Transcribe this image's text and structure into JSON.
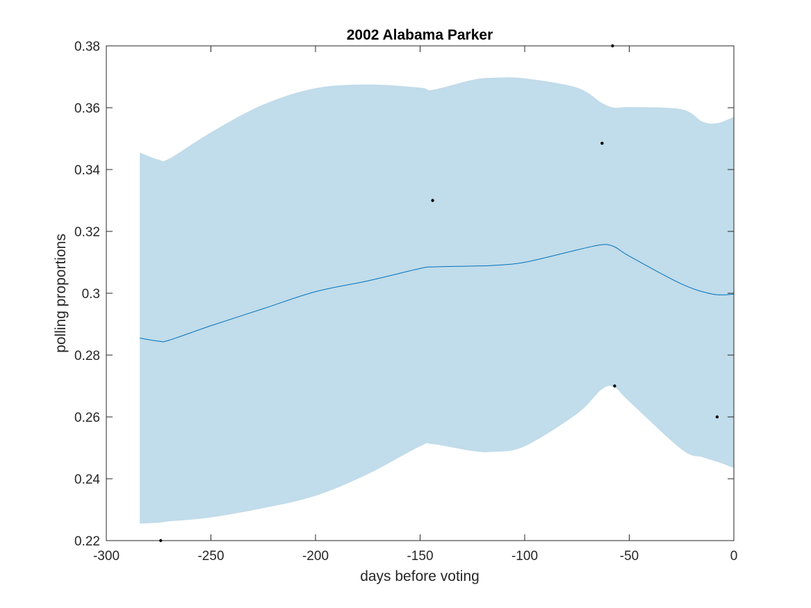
{
  "chart_data": {
    "type": "area",
    "title": "2002 Alabama Parker",
    "xlabel": "days before voting",
    "ylabel": "polling proportions",
    "xlim": [
      -300,
      0
    ],
    "ylim": [
      0.22,
      0.38
    ],
    "xticks": [
      -300,
      -250,
      -200,
      -150,
      -100,
      -50,
      0
    ],
    "xtick_labels": [
      "-300",
      "-250",
      "-200",
      "-150",
      "-100",
      "-50",
      "0"
    ],
    "yticks": [
      0.22,
      0.24,
      0.26,
      0.28,
      0.3,
      0.32,
      0.34,
      0.36,
      0.38
    ],
    "ytick_labels": [
      "0.22",
      "0.24",
      "0.26",
      "0.28",
      "0.3",
      "0.32",
      "0.34",
      "0.36",
      "0.38"
    ],
    "grid": false,
    "band_color": "#c1dcea",
    "line_color": "#0072bd",
    "point_color": "#000000",
    "band": {
      "x": [
        -284,
        -275,
        -270,
        -250,
        -225,
        -200,
        -175,
        -150,
        -144,
        -125,
        -115,
        -100,
        -75,
        -63,
        -57,
        -50,
        -25,
        -15,
        -8,
        0
      ],
      "upper": [
        0.3455,
        0.3432,
        0.3435,
        0.352,
        0.361,
        0.3663,
        0.3675,
        0.3665,
        0.3658,
        0.369,
        0.3697,
        0.3695,
        0.3665,
        0.3615,
        0.36,
        0.3602,
        0.3595,
        0.3555,
        0.355,
        0.357
      ],
      "lower": [
        0.2255,
        0.2258,
        0.2262,
        0.2275,
        0.2305,
        0.2345,
        0.2415,
        0.2505,
        0.2512,
        0.249,
        0.2487,
        0.2505,
        0.261,
        0.269,
        0.2695,
        0.265,
        0.2495,
        0.247,
        0.2455,
        0.2435
      ]
    },
    "series": [
      {
        "x": [
          -284,
          -275,
          -270,
          -250,
          -225,
          -200,
          -175,
          -150,
          -144,
          -125,
          -115,
          -100,
          -75,
          -63,
          -57,
          -50,
          -25,
          -10,
          0
        ],
        "values": [
          0.2855,
          0.2845,
          0.2848,
          0.2895,
          0.295,
          0.3005,
          0.304,
          0.308,
          0.3085,
          0.3088,
          0.309,
          0.31,
          0.314,
          0.3157,
          0.315,
          0.312,
          0.303,
          0.2997,
          0.2997
        ]
      }
    ],
    "points": {
      "x": [
        -274,
        -144,
        -63,
        -58,
        -57,
        -8
      ],
      "y": [
        0.22,
        0.33,
        0.3485,
        0.38,
        0.27,
        0.26
      ]
    }
  }
}
